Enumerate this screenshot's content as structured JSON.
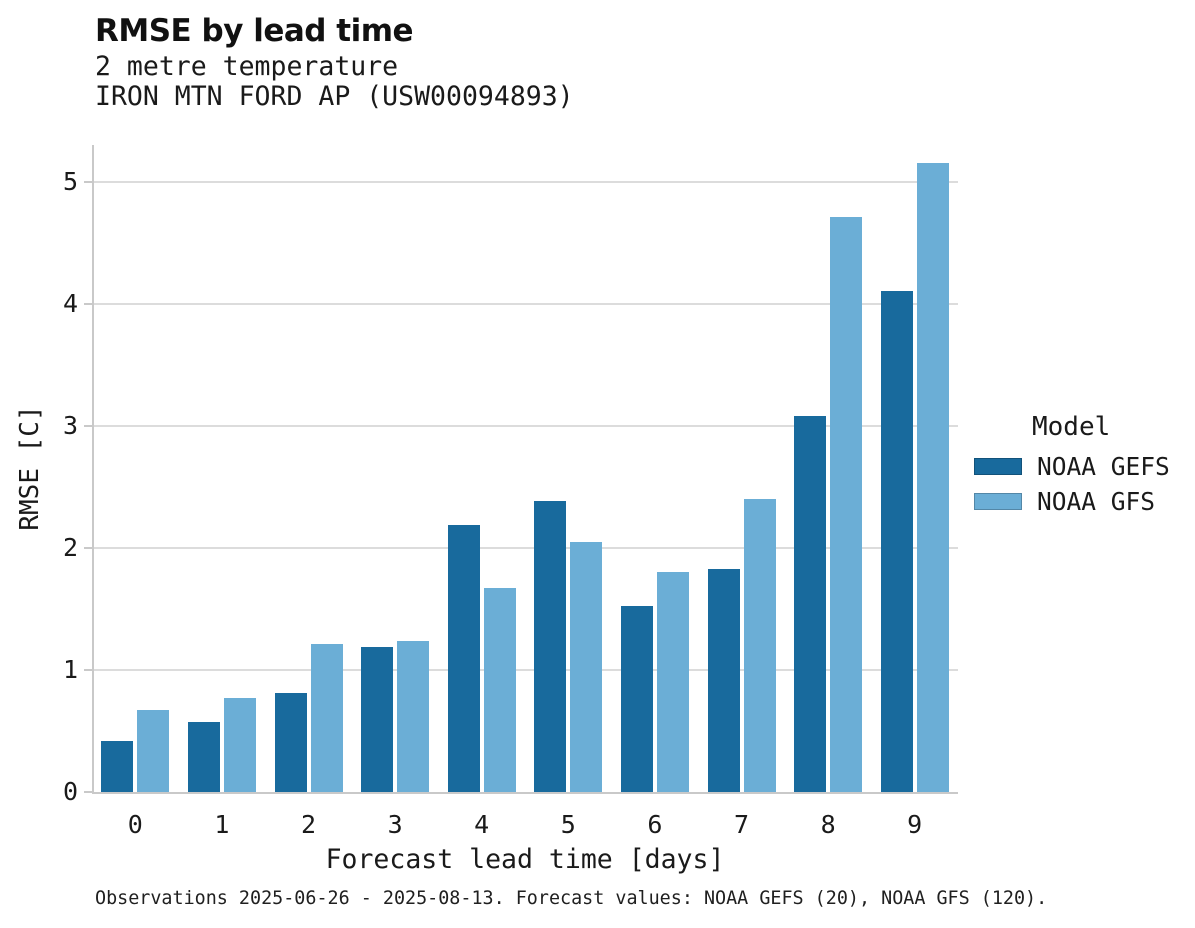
{
  "title": "RMSE by lead time",
  "subtitle_variable": "2 metre temperature",
  "subtitle_station": "IRON MTN FORD AP (USW00094893)",
  "caption": "Observations 2025-06-26 - 2025-08-13. Forecast values: NOAA GEFS (20), NOAA GFS (120).",
  "legend": {
    "title": "Model",
    "entries": [
      {
        "label": "NOAA GEFS",
        "color": "#186a9d"
      },
      {
        "label": "NOAA GFS",
        "color": "#6baed6"
      }
    ]
  },
  "colors": {
    "series_dark": "#186a9d",
    "series_light": "#6baed6",
    "gridline": "#dcdcdc",
    "spine": "#c9c9c9",
    "text": "#1a1a1a"
  },
  "chart_data": {
    "type": "bar",
    "title": "RMSE by lead time",
    "subtitle": [
      "2 metre temperature",
      "IRON MTN FORD AP (USW00094893)"
    ],
    "xlabel": "Forecast lead time [days]",
    "ylabel": "RMSE [C]",
    "categories": [
      "0",
      "1",
      "2",
      "3",
      "4",
      "5",
      "6",
      "7",
      "8",
      "9"
    ],
    "series": [
      {
        "name": "NOAA GEFS",
        "color": "#186a9d",
        "values": [
          0.42,
          0.57,
          0.81,
          1.19,
          2.19,
          2.38,
          1.52,
          1.83,
          3.08,
          4.1
        ]
      },
      {
        "name": "NOAA GFS",
        "color": "#6baed6",
        "values": [
          0.67,
          0.77,
          1.21,
          1.24,
          1.67,
          2.05,
          1.8,
          2.4,
          4.71,
          5.15
        ]
      }
    ],
    "ylim": [
      0,
      5.3
    ],
    "yticks": [
      0,
      1,
      2,
      3,
      4,
      5
    ],
    "grid": true,
    "grid_axis": "y",
    "legend_position": "right",
    "legend_title": "Model"
  }
}
